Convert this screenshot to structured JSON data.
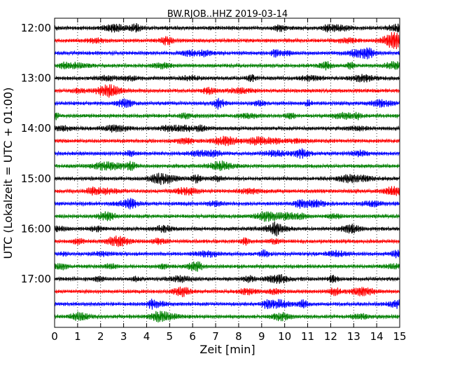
{
  "chart_data": {
    "type": "line",
    "title": "BW.RJOB..HHZ 2019-03-14",
    "xlabel": "Zeit  [min]",
    "ylabel": "UTC (Lokalzeit = UTC + 01:00)",
    "xlim": [
      0,
      15
    ],
    "x_ticks": [
      "0",
      "1",
      "2",
      "3",
      "4",
      "5",
      "6",
      "7",
      "8",
      "9",
      "10",
      "11",
      "12",
      "13",
      "14",
      "15"
    ],
    "vertical_grid": "dotted",
    "trace_minutes_per_line": 15,
    "y_tick_labels": [
      "12:00",
      "13:00",
      "14:00",
      "15:00",
      "16:00",
      "17:00"
    ],
    "traces": [
      {
        "start": "12:00",
        "color": "#000000"
      },
      {
        "start": "12:15",
        "color": "#ff0000"
      },
      {
        "start": "12:30",
        "color": "#0000ff"
      },
      {
        "start": "12:45",
        "color": "#008000"
      },
      {
        "start": "13:00",
        "color": "#000000"
      },
      {
        "start": "13:15",
        "color": "#ff0000"
      },
      {
        "start": "13:30",
        "color": "#0000ff"
      },
      {
        "start": "13:45",
        "color": "#008000"
      },
      {
        "start": "14:00",
        "color": "#000000"
      },
      {
        "start": "14:15",
        "color": "#ff0000"
      },
      {
        "start": "14:30",
        "color": "#0000ff"
      },
      {
        "start": "14:45",
        "color": "#008000"
      },
      {
        "start": "15:00",
        "color": "#000000"
      },
      {
        "start": "15:15",
        "color": "#ff0000"
      },
      {
        "start": "15:30",
        "color": "#0000ff"
      },
      {
        "start": "15:45",
        "color": "#008000"
      },
      {
        "start": "16:00",
        "color": "#000000"
      },
      {
        "start": "16:15",
        "color": "#ff0000"
      },
      {
        "start": "16:30",
        "color": "#0000ff"
      },
      {
        "start": "16:45",
        "color": "#008000"
      },
      {
        "start": "17:00",
        "color": "#000000"
      },
      {
        "start": "17:15",
        "color": "#ff0000"
      },
      {
        "start": "17:30",
        "color": "#0000ff"
      },
      {
        "start": "17:45",
        "color": "#008000"
      }
    ]
  }
}
